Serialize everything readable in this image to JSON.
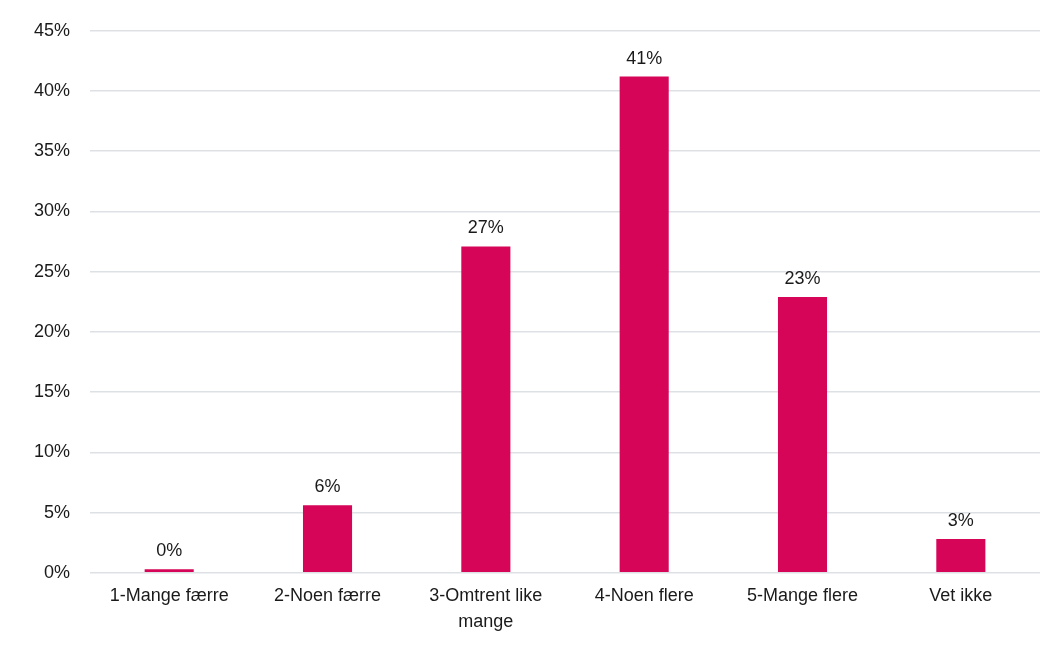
{
  "chart_data": {
    "type": "bar",
    "categories": [
      "1-Mange færre",
      "2-Noen færre",
      "3-Omtrent like mange",
      "4-Noen flere",
      "5-Mange flere",
      "Vet ikke"
    ],
    "values": [
      0.3,
      5.6,
      27.1,
      41.2,
      22.9,
      2.8
    ],
    "value_labels": [
      "0%",
      "6%",
      "27%",
      "41%",
      "23%",
      "3%"
    ],
    "color": "#d60558",
    "ylim": [
      0,
      45
    ],
    "yticks": [
      {
        "value": 0,
        "label": "0%"
      },
      {
        "value": 5,
        "label": "5%"
      },
      {
        "value": 10,
        "label": "10%"
      },
      {
        "value": 15,
        "label": "15%"
      },
      {
        "value": 20,
        "label": "20%"
      },
      {
        "value": 25,
        "label": "25%"
      },
      {
        "value": 30,
        "label": "30%"
      },
      {
        "value": 35,
        "label": "35%"
      },
      {
        "value": 40,
        "label": "40%"
      },
      {
        "value": 45,
        "label": "45%"
      }
    ],
    "grid": "y"
  }
}
